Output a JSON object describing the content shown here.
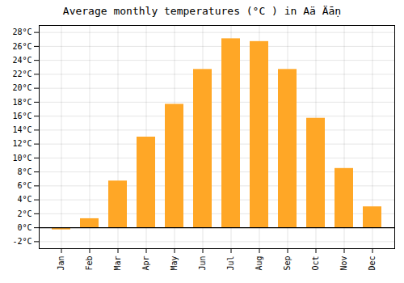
{
  "chart_data": {
    "type": "bar",
    "title": "Average monthly temperatures (°C ) in Aä Äāṇ",
    "categories": [
      "Jan",
      "Feb",
      "Mar",
      "Apr",
      "May",
      "Jun",
      "Jul",
      "Aug",
      "Sep",
      "Oct",
      "Nov",
      "Dec"
    ],
    "values": [
      -0.3,
      1.3,
      6.7,
      13.0,
      17.7,
      22.7,
      27.1,
      26.7,
      22.7,
      15.7,
      8.5,
      3.0
    ],
    "color": "#FFA726",
    "ylim": [
      -3,
      29
    ],
    "yticks": [
      {
        "value": -2,
        "label": "-2°C"
      },
      {
        "value": 0,
        "label": "0°C"
      },
      {
        "value": 2,
        "label": "2°C"
      },
      {
        "value": 4,
        "label": "4°C"
      },
      {
        "value": 6,
        "label": "6°C"
      },
      {
        "value": 8,
        "label": "8°C"
      },
      {
        "value": 10,
        "label": "10°C"
      },
      {
        "value": 12,
        "label": "12°C"
      },
      {
        "value": 14,
        "label": "14°C"
      },
      {
        "value": 16,
        "label": "16°C"
      },
      {
        "value": 18,
        "label": "18°C"
      },
      {
        "value": 20,
        "label": "20°C"
      },
      {
        "value": 22,
        "label": "22°C"
      },
      {
        "value": 24,
        "label": "24°C"
      },
      {
        "value": 26,
        "label": "26°C"
      },
      {
        "value": 28,
        "label": "28°C"
      }
    ],
    "grid": true
  }
}
